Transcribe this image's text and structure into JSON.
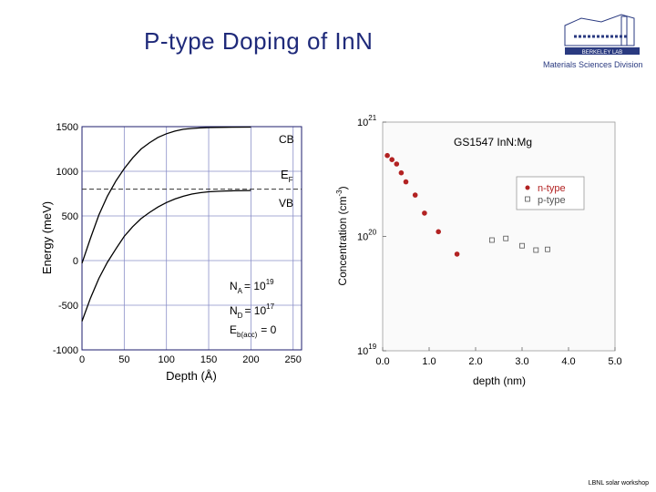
{
  "slide": {
    "title": "P-type Doping of InN",
    "footer": "LBNL solar workshop",
    "logo": {
      "lab": "BERKELEY LAB",
      "division": "Materials Sciences Division",
      "icon": "berkeley-lab-logo"
    }
  },
  "colors": {
    "title": "#1f2a7a",
    "grid": "#8a8fc8",
    "ntype": "#b22222",
    "ptype": "#555555"
  },
  "chart_data": [
    {
      "type": "line",
      "xlabel": "Depth (Å)",
      "ylabel": "Energy (meV)",
      "xlim": [
        0,
        260
      ],
      "ylim": [
        -1000,
        1500
      ],
      "xticks": [
        "0",
        "50",
        "100",
        "150",
        "200",
        "250"
      ],
      "yticks": [
        "-1000",
        "-500",
        "0",
        "500",
        "1000",
        "1500"
      ],
      "grid": true,
      "fermi_level": 800,
      "series": [
        {
          "name": "CB",
          "x": [
            0,
            10,
            20,
            30,
            40,
            50,
            60,
            70,
            80,
            90,
            100,
            110,
            120,
            130,
            140,
            150,
            160,
            170,
            180,
            200
          ],
          "values": [
            -30,
            250,
            510,
            720,
            890,
            1030,
            1150,
            1250,
            1320,
            1380,
            1420,
            1450,
            1470,
            1480,
            1486,
            1490,
            1492,
            1493,
            1494,
            1495
          ]
        },
        {
          "name": "VB",
          "x": [
            0,
            10,
            20,
            30,
            40,
            50,
            60,
            70,
            80,
            90,
            100,
            110,
            120,
            130,
            140,
            150,
            160,
            170,
            180,
            200
          ],
          "values": [
            -680,
            -420,
            -200,
            -20,
            130,
            270,
            380,
            470,
            540,
            600,
            650,
            690,
            720,
            745,
            760,
            770,
            776,
            780,
            782,
            785
          ]
        }
      ],
      "labels": {
        "cb": "CB",
        "ef_main": "E",
        "ef_sub": "F",
        "vb": "VB"
      },
      "annotations": {
        "na_main": "N",
        "na_sub": "A",
        "na_value": "= 10",
        "na_exp": "19",
        "nd_main": "N",
        "nd_sub": "D",
        "nd_value": "= 10",
        "nd_exp": "17",
        "eb_main": "E",
        "eb_sub": "b(acc)",
        "eb_value": "= 0"
      }
    },
    {
      "type": "scatter",
      "title": "GS1547 InN:Mg",
      "xlabel": "depth (nm)",
      "ylabel_main": "Concentration (cm",
      "ylabel_exp": "-3",
      "ylabel_end": ")",
      "xlim": [
        0,
        5
      ],
      "ylim": [
        1e+19,
        1e+21
      ],
      "log_y": true,
      "xticks": [
        "0.0",
        "1.0",
        "2.0",
        "3.0",
        "4.0",
        "5.0"
      ],
      "yticks": [
        {
          "base": "10",
          "exp": "19"
        },
        {
          "base": "10",
          "exp": "20"
        },
        {
          "base": "10",
          "exp": "21"
        }
      ],
      "legend_position": "top-right",
      "series": [
        {
          "name": "n-type",
          "x": [
            0.1,
            0.2,
            0.3,
            0.4,
            0.5,
            0.7,
            0.9,
            1.2,
            1.6
          ],
          "values": [
            5.1e+20,
            4.7e+20,
            4.3e+20,
            3.6e+20,
            3e+20,
            2.3e+20,
            1.6e+20,
            1.1e+20,
            7e+19
          ]
        },
        {
          "name": "p-type",
          "x": [
            2.35,
            2.65,
            3.0,
            3.3,
            3.55
          ],
          "values": [
            9.3e+19,
            9.6e+19,
            8.3e+19,
            7.6e+19,
            7.7e+19
          ]
        }
      ]
    }
  ]
}
